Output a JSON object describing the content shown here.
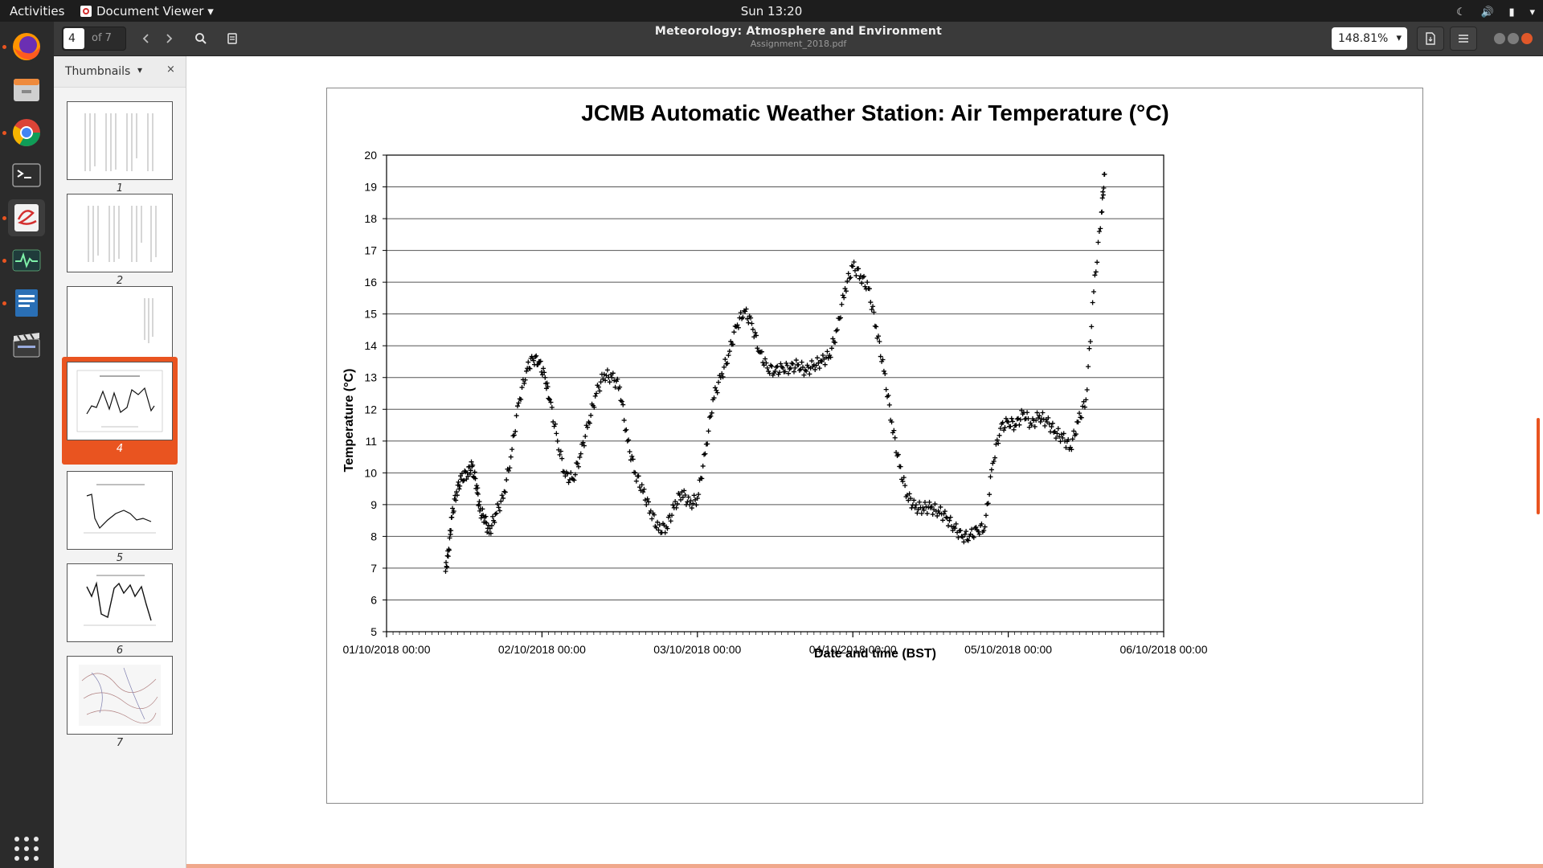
{
  "topbar": {
    "activities": "Activities",
    "app_menu": "Document Viewer ▾",
    "clock": "Sun 13:20"
  },
  "dock": {
    "items": [
      {
        "name": "firefox-icon",
        "active": false,
        "running": true
      },
      {
        "name": "files-icon",
        "active": false,
        "running": false
      },
      {
        "name": "chrome-icon",
        "active": false,
        "running": true
      },
      {
        "name": "terminal-icon",
        "active": false,
        "running": false
      },
      {
        "name": "document-viewer-icon",
        "active": true,
        "running": true
      },
      {
        "name": "system-monitor-icon",
        "active": false,
        "running": true
      },
      {
        "name": "libreoffice-writer-icon",
        "active": false,
        "running": true
      },
      {
        "name": "video-editor-icon",
        "active": false,
        "running": false
      }
    ],
    "apps_grid": "show-applications-icon"
  },
  "header": {
    "page_current": "4",
    "page_total": "of 7",
    "title": "Meteorology: Atmosphere and Environment",
    "subtitle": "Assignment_2018.pdf",
    "zoom": "148.81%"
  },
  "sidebar": {
    "label": "Thumbnails",
    "close": "×",
    "thumbnails": [
      "1",
      "2",
      "3",
      "4",
      "5",
      "6",
      "7"
    ],
    "selected": "4"
  },
  "chart_data": {
    "type": "scatter",
    "title": "JCMB Automatic Weather Station: Air Temperature (°C)",
    "xlabel": "Date and time (BST)",
    "ylabel": "Temperature (°C)",
    "x_tick_labels": [
      "01/10/2018 00:00",
      "02/10/2018 00:00",
      "03/10/2018 00:00",
      "04/10/2018 00:00",
      "05/10/2018 00:00",
      "06/10/2018 00:00"
    ],
    "y_tick_labels": [
      "5",
      "6",
      "7",
      "8",
      "9",
      "10",
      "11",
      "12",
      "13",
      "14",
      "15",
      "16",
      "17",
      "18",
      "19",
      "20"
    ],
    "xlim_days": [
      0,
      5
    ],
    "ylim": [
      5,
      20
    ],
    "grid": "horizontal",
    "marker": "+",
    "color": "#000000",
    "series": [
      {
        "x_days": [
          0.38,
          0.4,
          0.42,
          0.45,
          0.48,
          0.52,
          0.55,
          0.58,
          0.6,
          0.63,
          0.66,
          0.7,
          0.75,
          0.8,
          0.85,
          0.9,
          0.94,
          0.98,
          1.02,
          1.05,
          1.1,
          1.15,
          1.2,
          1.25,
          1.3,
          1.35,
          1.4,
          1.45,
          1.5,
          1.55,
          1.6,
          1.65,
          1.7,
          1.75,
          1.8,
          1.85,
          1.9,
          1.95,
          2.0,
          2.05,
          2.1,
          2.15,
          2.2,
          2.25,
          2.3,
          2.35,
          2.4,
          2.45,
          2.5,
          2.55,
          2.6,
          2.65,
          2.7,
          2.75,
          2.8,
          2.85,
          2.9,
          2.95,
          3.0,
          3.05,
          3.1,
          3.15,
          3.2,
          3.25,
          3.3,
          3.35,
          3.4,
          3.45,
          3.5,
          3.55,
          3.6,
          3.65,
          3.7,
          3.75,
          3.8,
          3.85,
          3.9,
          3.95,
          4.0,
          4.05,
          4.1,
          4.15,
          4.2,
          4.25,
          4.3,
          4.35,
          4.4,
          4.45,
          4.5,
          4.55,
          4.6,
          4.62
        ],
        "y": [
          6.9,
          7.6,
          8.6,
          9.4,
          9.8,
          10.0,
          10.2,
          9.6,
          8.8,
          8.6,
          8.1,
          8.7,
          9.2,
          10.5,
          12.2,
          13.2,
          13.6,
          13.5,
          13.0,
          12.3,
          11.0,
          9.9,
          9.8,
          10.6,
          11.6,
          12.5,
          13.1,
          13.0,
          12.7,
          11.0,
          10.0,
          9.4,
          8.8,
          8.2,
          8.3,
          8.9,
          9.4,
          9.0,
          9.2,
          10.6,
          12.3,
          13.0,
          13.7,
          14.6,
          15.1,
          14.7,
          13.8,
          13.3,
          13.2,
          13.3,
          13.3,
          13.4,
          13.2,
          13.4,
          13.5,
          13.7,
          14.5,
          15.8,
          16.5,
          16.2,
          15.8,
          14.6,
          13.2,
          11.6,
          10.2,
          9.3,
          8.9,
          8.9,
          8.9,
          8.8,
          8.6,
          8.3,
          8.0,
          8.0,
          8.2,
          8.3,
          10.3,
          11.4,
          11.6,
          11.5,
          11.9,
          11.5,
          11.8,
          11.6,
          11.3,
          11.1,
          10.8,
          11.6,
          12.3,
          15.7,
          18.2,
          19.4
        ]
      }
    ]
  }
}
